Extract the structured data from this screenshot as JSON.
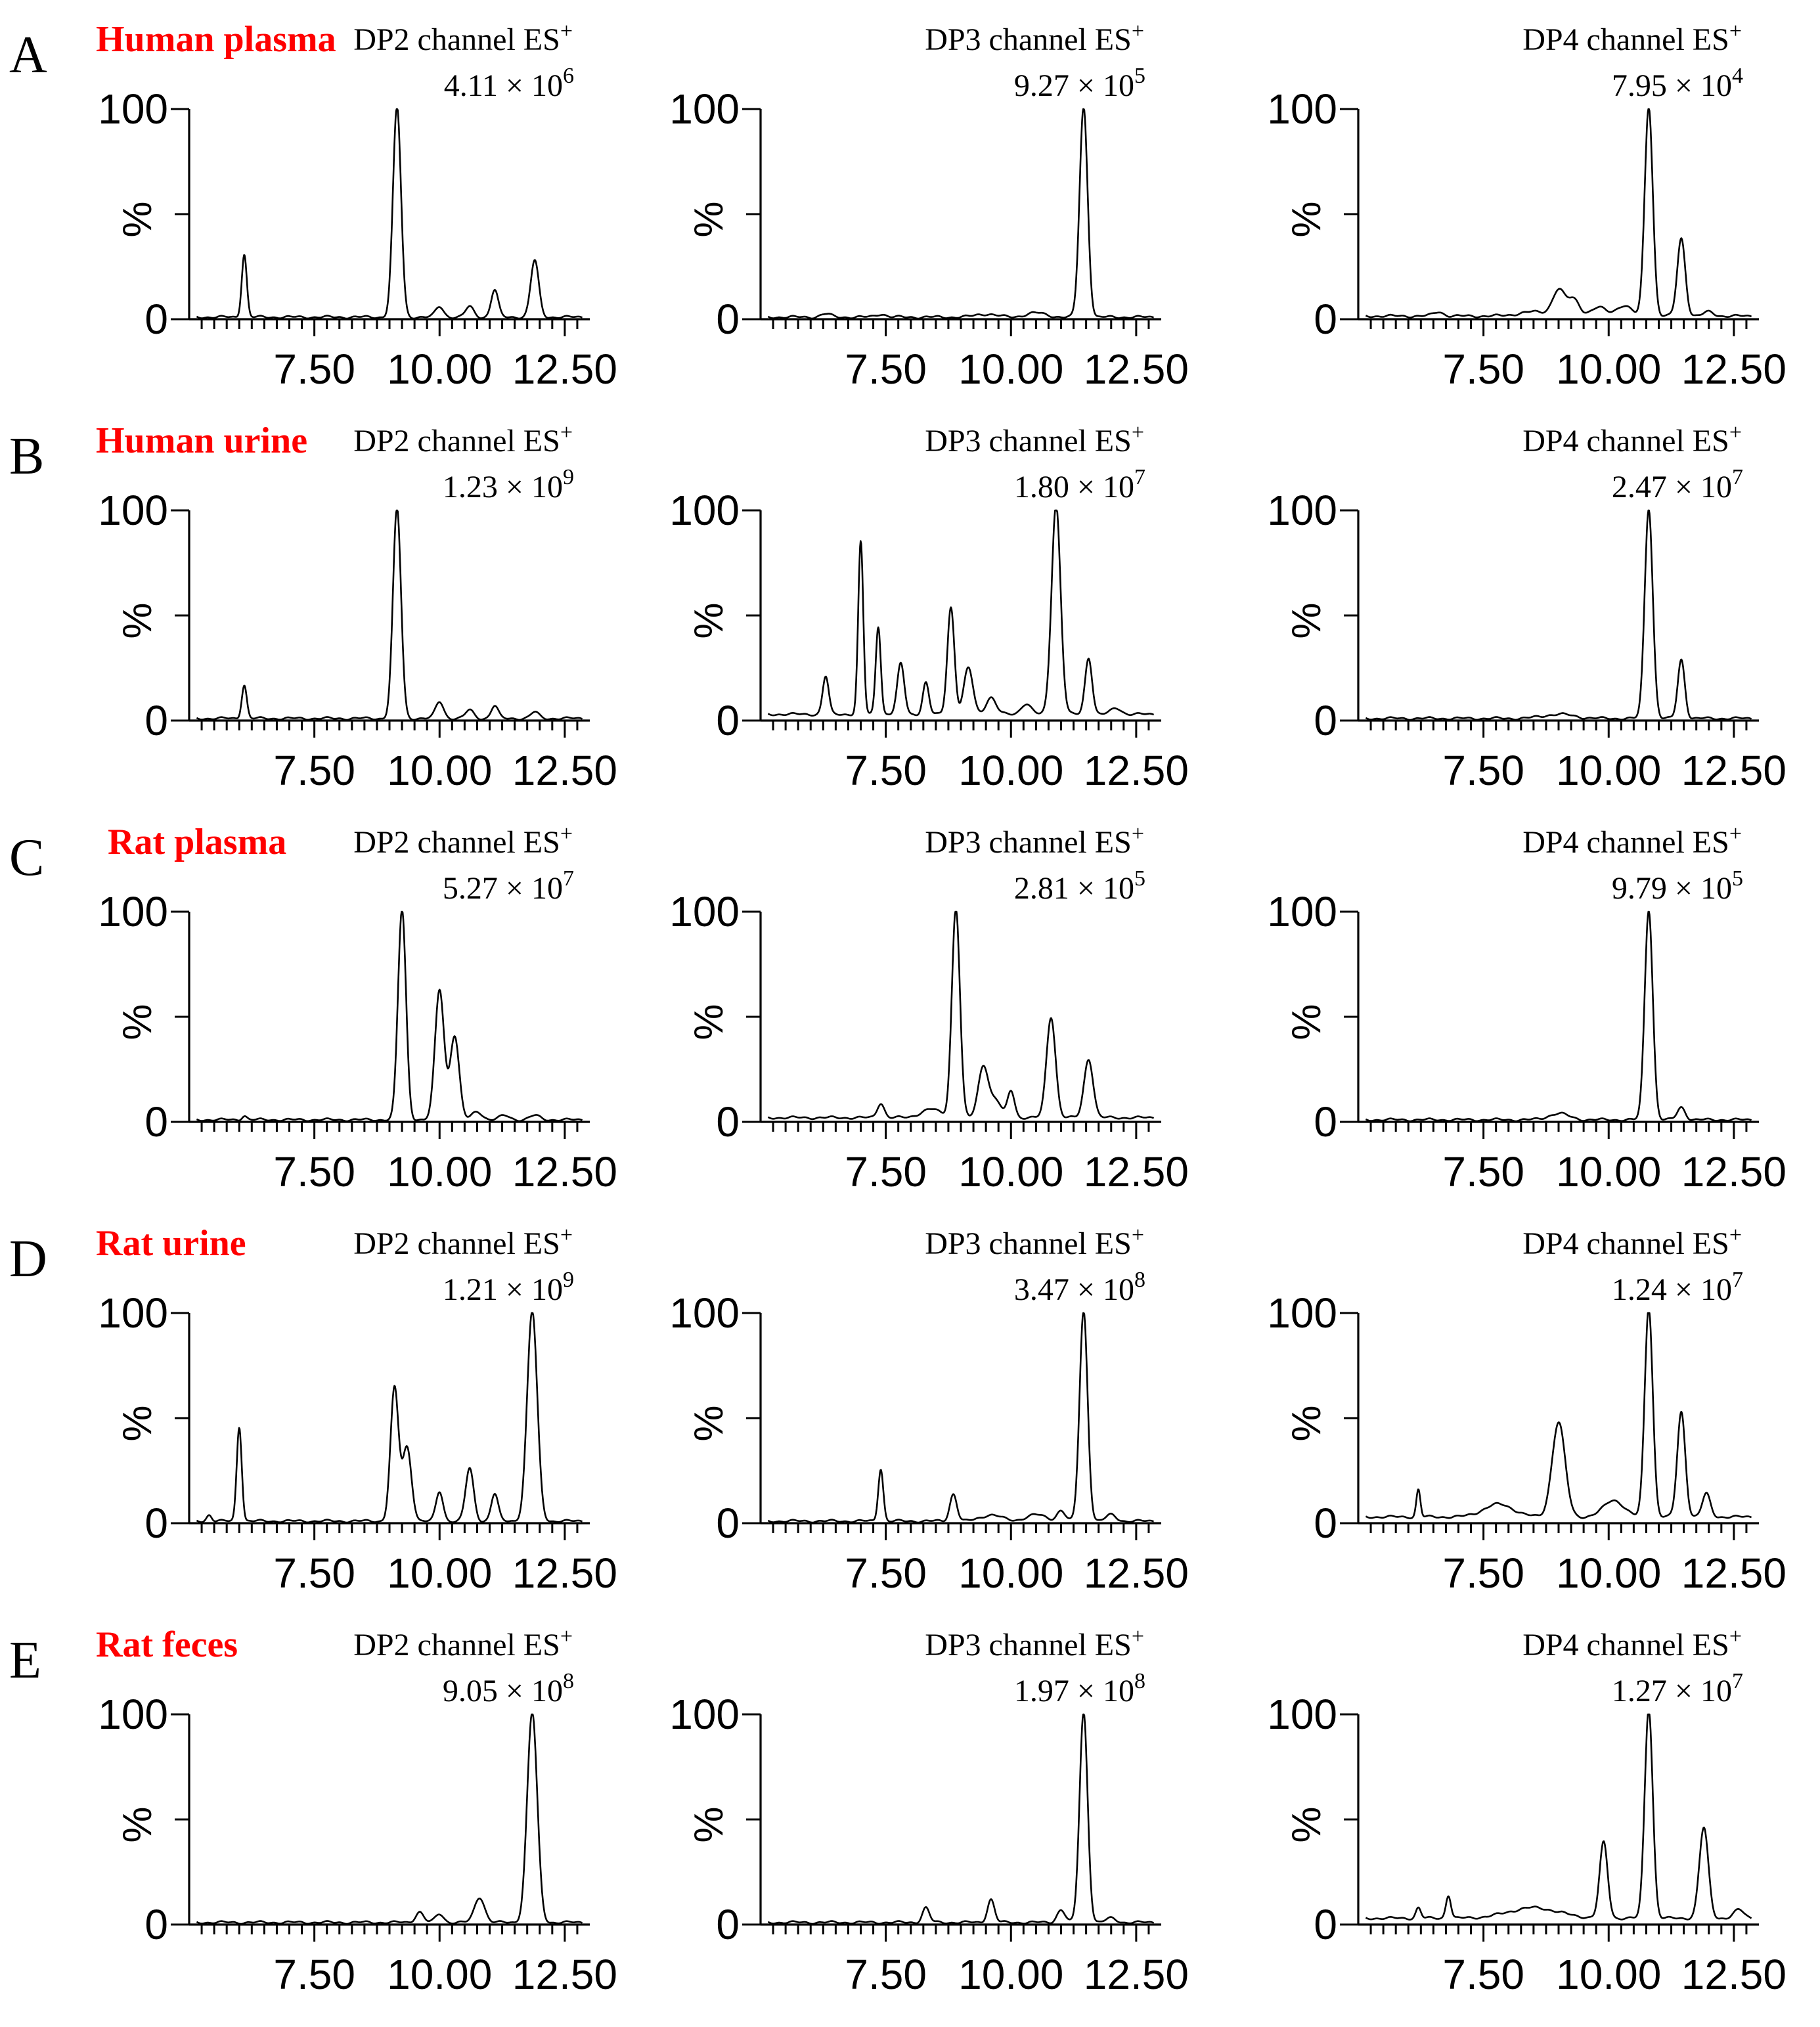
{
  "chart_data": {
    "type": "line",
    "x_ticks": [
      "7.50",
      "10.00",
      "12.50"
    ],
    "y_ticks": [
      "0",
      "100"
    ],
    "ylabel": "%",
    "xlim": [
      5.0,
      13.0
    ],
    "ylim": [
      0,
      100
    ],
    "rows": [
      {
        "letter": "A",
        "label": "Human plasma",
        "panels": [
          {
            "title": "DP2 channel ES",
            "title_sup": "+",
            "scale": "4.11 × 10",
            "scale_exp": "6",
            "baseline": 1,
            "peaks": [
              [
                6.1,
                30,
                0.05
              ],
              [
                9.15,
                100,
                0.08
              ],
              [
                10.0,
                5,
                0.08
              ],
              [
                10.6,
                5,
                0.08
              ],
              [
                11.1,
                13,
                0.07
              ],
              [
                11.9,
                27,
                0.08
              ]
            ]
          },
          {
            "title": "DP3 channel ES",
            "title_sup": "+",
            "scale": "9.27 × 10",
            "scale_exp": "5",
            "baseline": 1,
            "peaks": [
              [
                6.3,
                1.5,
                0.1
              ],
              [
                7.4,
                1.5,
                0.1
              ],
              [
                9.5,
                1.5,
                0.2
              ],
              [
                10.5,
                2,
                0.2
              ],
              [
                11.45,
                100,
                0.08
              ]
            ]
          },
          {
            "title": "DP4 channel ES",
            "title_sup": "+",
            "scale": "7.95 × 10",
            "scale_exp": "4",
            "baseline": 1.5,
            "peaks": [
              [
                6.6,
                2,
                0.1
              ],
              [
                8.5,
                2,
                0.3
              ],
              [
                9.0,
                12,
                0.12
              ],
              [
                9.3,
                8,
                0.12
              ],
              [
                9.8,
                4,
                0.15
              ],
              [
                10.3,
                5,
                0.15
              ],
              [
                10.8,
                100,
                0.08
              ],
              [
                11.45,
                37,
                0.08
              ],
              [
                12.0,
                2,
                0.1
              ]
            ]
          }
        ]
      },
      {
        "letter": "B",
        "label": "Human urine",
        "panels": [
          {
            "title": "DP2 channel ES",
            "title_sup": "+",
            "scale": "1.23 × 10",
            "scale_exp": "9",
            "baseline": 1,
            "peaks": [
              [
                6.1,
                16,
                0.05
              ],
              [
                9.15,
                100,
                0.08
              ],
              [
                10.0,
                8,
                0.08
              ],
              [
                10.6,
                4,
                0.08
              ],
              [
                11.1,
                6,
                0.07
              ],
              [
                11.9,
                3,
                0.08
              ]
            ]
          },
          {
            "title": "DP3 channel ES",
            "title_sup": "+",
            "scale": "1.80 × 10",
            "scale_exp": "7",
            "baseline": 3,
            "peaks": [
              [
                6.3,
                18,
                0.06
              ],
              [
                7.0,
                82,
                0.05
              ],
              [
                7.35,
                42,
                0.05
              ],
              [
                7.8,
                24,
                0.07
              ],
              [
                8.3,
                15,
                0.06
              ],
              [
                8.8,
                51,
                0.07
              ],
              [
                9.15,
                22,
                0.09
              ],
              [
                9.6,
                8,
                0.1
              ],
              [
                10.3,
                5,
                0.1
              ],
              [
                10.9,
                100,
                0.09
              ],
              [
                11.55,
                27,
                0.07
              ],
              [
                12.1,
                3,
                0.1
              ]
            ]
          },
          {
            "title": "DP4 channel ES",
            "title_sup": "+",
            "scale": "2.47 × 10",
            "scale_exp": "7",
            "baseline": 1,
            "peaks": [
              [
                9.0,
                2,
                0.3
              ],
              [
                10.8,
                100,
                0.08
              ],
              [
                11.45,
                28,
                0.07
              ]
            ]
          }
        ]
      },
      {
        "letter": "C",
        "label": "Rat plasma",
        "panels": [
          {
            "title": "DP2 channel ES",
            "title_sup": "+",
            "scale": "5.27 × 10",
            "scale_exp": "7",
            "baseline": 1,
            "peaks": [
              [
                6.1,
                2,
                0.05
              ],
              [
                9.25,
                100,
                0.08
              ],
              [
                10.0,
                62,
                0.09
              ],
              [
                10.3,
                40,
                0.09
              ],
              [
                10.75,
                4,
                0.1
              ],
              [
                11.3,
                2,
                0.1
              ],
              [
                11.9,
                2,
                0.1
              ]
            ]
          },
          {
            "title": "DP3 channel ES",
            "title_sup": "+",
            "scale": "2.81 × 10",
            "scale_exp": "5",
            "baseline": 2,
            "peaks": [
              [
                7.4,
                7,
                0.07
              ],
              [
                8.4,
                4,
                0.2
              ],
              [
                8.9,
                100,
                0.08
              ],
              [
                9.45,
                25,
                0.1
              ],
              [
                9.7,
                8,
                0.1
              ],
              [
                10.0,
                13,
                0.07
              ],
              [
                10.8,
                48,
                0.09
              ],
              [
                11.55,
                28,
                0.09
              ]
            ]
          },
          {
            "title": "DP4 channel ES",
            "title_sup": "+",
            "scale": "9.79 × 10",
            "scale_exp": "5",
            "baseline": 1,
            "peaks": [
              [
                9.0,
                3,
                0.2
              ],
              [
                10.8,
                100,
                0.08
              ],
              [
                11.45,
                6,
                0.08
              ]
            ]
          }
        ]
      },
      {
        "letter": "D",
        "label": "Rat urine",
        "panels": [
          {
            "title": "DP2 channel ES",
            "title_sup": "+",
            "scale": "1.21 × 10",
            "scale_exp": "9",
            "baseline": 1,
            "peaks": [
              [
                5.4,
                3,
                0.05
              ],
              [
                6.0,
                45,
                0.05
              ],
              [
                9.1,
                63,
                0.08
              ],
              [
                9.35,
                35,
                0.09
              ],
              [
                10.0,
                14,
                0.07
              ],
              [
                10.6,
                25,
                0.08
              ],
              [
                11.1,
                13,
                0.07
              ],
              [
                11.85,
                100,
                0.1
              ]
            ]
          },
          {
            "title": "DP3 channel ES",
            "title_sup": "+",
            "scale": "3.47 × 10",
            "scale_exp": "8",
            "baseline": 1,
            "peaks": [
              [
                7.4,
                25,
                0.05
              ],
              [
                8.85,
                13,
                0.07
              ],
              [
                9.6,
                3,
                0.2
              ],
              [
                10.5,
                3,
                0.2
              ],
              [
                11.0,
                5,
                0.08
              ],
              [
                11.45,
                100,
                0.08
              ],
              [
                12.0,
                3,
                0.1
              ]
            ]
          },
          {
            "title": "DP4 channel ES",
            "title_sup": "+",
            "scale": "1.24 × 10",
            "scale_exp": "7",
            "baseline": 3,
            "peaks": [
              [
                6.2,
                13,
                0.04
              ],
              [
                7.8,
                6,
                0.3
              ],
              [
                9.0,
                45,
                0.13
              ],
              [
                10.1,
                8,
                0.2
              ],
              [
                10.8,
                100,
                0.08
              ],
              [
                11.45,
                50,
                0.08
              ],
              [
                11.95,
                11,
                0.08
              ]
            ]
          }
        ]
      },
      {
        "letter": "E",
        "label": "Rat feces",
        "panels": [
          {
            "title": "DP2 channel ES",
            "title_sup": "+",
            "scale": "9.05 × 10",
            "scale_exp": "8",
            "baseline": 1,
            "peaks": [
              [
                9.6,
                5,
                0.08
              ],
              [
                10.0,
                4,
                0.08
              ],
              [
                10.8,
                12,
                0.1
              ],
              [
                11.85,
                100,
                0.1
              ]
            ]
          },
          {
            "title": "DP3 channel ES",
            "title_sup": "+",
            "scale": "1.97 × 10",
            "scale_exp": "8",
            "baseline": 1,
            "peaks": [
              [
                8.3,
                7,
                0.07
              ],
              [
                9.6,
                11,
                0.07
              ],
              [
                11.0,
                6,
                0.08
              ],
              [
                11.45,
                100,
                0.08
              ],
              [
                12.0,
                2,
                0.1
              ]
            ]
          },
          {
            "title": "DP4 channel ES",
            "title_sup": "+",
            "scale": "1.27 × 10",
            "scale_exp": "7",
            "baseline": 3,
            "peaks": [
              [
                6.2,
                5,
                0.05
              ],
              [
                6.8,
                11,
                0.05
              ],
              [
                8.5,
                5,
                0.5
              ],
              [
                9.9,
                36,
                0.08
              ],
              [
                10.8,
                100,
                0.08
              ],
              [
                11.9,
                43,
                0.09
              ],
              [
                12.6,
                4,
                0.1
              ]
            ]
          }
        ]
      }
    ]
  }
}
